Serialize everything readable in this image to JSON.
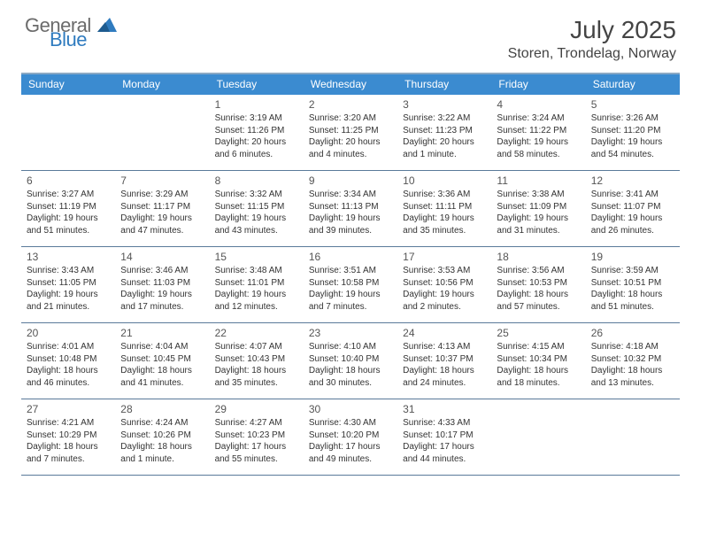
{
  "brand": {
    "word1": "General",
    "word2": "Blue",
    "word1_color": "#6b6b6b",
    "word2_color": "#2f7bbf",
    "triangle_color": "#2f7bbf"
  },
  "title": "July 2025",
  "location": "Storen, Trondelag, Norway",
  "header_colors": {
    "weekday_bg": "#3b8bd0",
    "weekday_fg": "#ffffff",
    "rule_color": "#5a7a9a",
    "top_rule": "#8aa9c4"
  },
  "weekdays": [
    "Sunday",
    "Monday",
    "Tuesday",
    "Wednesday",
    "Thursday",
    "Friday",
    "Saturday"
  ],
  "weeks": [
    [
      null,
      null,
      {
        "n": "1",
        "sr": "Sunrise: 3:19 AM",
        "ss": "Sunset: 11:26 PM",
        "dl1": "Daylight: 20 hours",
        "dl2": "and 6 minutes."
      },
      {
        "n": "2",
        "sr": "Sunrise: 3:20 AM",
        "ss": "Sunset: 11:25 PM",
        "dl1": "Daylight: 20 hours",
        "dl2": "and 4 minutes."
      },
      {
        "n": "3",
        "sr": "Sunrise: 3:22 AM",
        "ss": "Sunset: 11:23 PM",
        "dl1": "Daylight: 20 hours",
        "dl2": "and 1 minute."
      },
      {
        "n": "4",
        "sr": "Sunrise: 3:24 AM",
        "ss": "Sunset: 11:22 PM",
        "dl1": "Daylight: 19 hours",
        "dl2": "and 58 minutes."
      },
      {
        "n": "5",
        "sr": "Sunrise: 3:26 AM",
        "ss": "Sunset: 11:20 PM",
        "dl1": "Daylight: 19 hours",
        "dl2": "and 54 minutes."
      }
    ],
    [
      {
        "n": "6",
        "sr": "Sunrise: 3:27 AM",
        "ss": "Sunset: 11:19 PM",
        "dl1": "Daylight: 19 hours",
        "dl2": "and 51 minutes."
      },
      {
        "n": "7",
        "sr": "Sunrise: 3:29 AM",
        "ss": "Sunset: 11:17 PM",
        "dl1": "Daylight: 19 hours",
        "dl2": "and 47 minutes."
      },
      {
        "n": "8",
        "sr": "Sunrise: 3:32 AM",
        "ss": "Sunset: 11:15 PM",
        "dl1": "Daylight: 19 hours",
        "dl2": "and 43 minutes."
      },
      {
        "n": "9",
        "sr": "Sunrise: 3:34 AM",
        "ss": "Sunset: 11:13 PM",
        "dl1": "Daylight: 19 hours",
        "dl2": "and 39 minutes."
      },
      {
        "n": "10",
        "sr": "Sunrise: 3:36 AM",
        "ss": "Sunset: 11:11 PM",
        "dl1": "Daylight: 19 hours",
        "dl2": "and 35 minutes."
      },
      {
        "n": "11",
        "sr": "Sunrise: 3:38 AM",
        "ss": "Sunset: 11:09 PM",
        "dl1": "Daylight: 19 hours",
        "dl2": "and 31 minutes."
      },
      {
        "n": "12",
        "sr": "Sunrise: 3:41 AM",
        "ss": "Sunset: 11:07 PM",
        "dl1": "Daylight: 19 hours",
        "dl2": "and 26 minutes."
      }
    ],
    [
      {
        "n": "13",
        "sr": "Sunrise: 3:43 AM",
        "ss": "Sunset: 11:05 PM",
        "dl1": "Daylight: 19 hours",
        "dl2": "and 21 minutes."
      },
      {
        "n": "14",
        "sr": "Sunrise: 3:46 AM",
        "ss": "Sunset: 11:03 PM",
        "dl1": "Daylight: 19 hours",
        "dl2": "and 17 minutes."
      },
      {
        "n": "15",
        "sr": "Sunrise: 3:48 AM",
        "ss": "Sunset: 11:01 PM",
        "dl1": "Daylight: 19 hours",
        "dl2": "and 12 minutes."
      },
      {
        "n": "16",
        "sr": "Sunrise: 3:51 AM",
        "ss": "Sunset: 10:58 PM",
        "dl1": "Daylight: 19 hours",
        "dl2": "and 7 minutes."
      },
      {
        "n": "17",
        "sr": "Sunrise: 3:53 AM",
        "ss": "Sunset: 10:56 PM",
        "dl1": "Daylight: 19 hours",
        "dl2": "and 2 minutes."
      },
      {
        "n": "18",
        "sr": "Sunrise: 3:56 AM",
        "ss": "Sunset: 10:53 PM",
        "dl1": "Daylight: 18 hours",
        "dl2": "and 57 minutes."
      },
      {
        "n": "19",
        "sr": "Sunrise: 3:59 AM",
        "ss": "Sunset: 10:51 PM",
        "dl1": "Daylight: 18 hours",
        "dl2": "and 51 minutes."
      }
    ],
    [
      {
        "n": "20",
        "sr": "Sunrise: 4:01 AM",
        "ss": "Sunset: 10:48 PM",
        "dl1": "Daylight: 18 hours",
        "dl2": "and 46 minutes."
      },
      {
        "n": "21",
        "sr": "Sunrise: 4:04 AM",
        "ss": "Sunset: 10:45 PM",
        "dl1": "Daylight: 18 hours",
        "dl2": "and 41 minutes."
      },
      {
        "n": "22",
        "sr": "Sunrise: 4:07 AM",
        "ss": "Sunset: 10:43 PM",
        "dl1": "Daylight: 18 hours",
        "dl2": "and 35 minutes."
      },
      {
        "n": "23",
        "sr": "Sunrise: 4:10 AM",
        "ss": "Sunset: 10:40 PM",
        "dl1": "Daylight: 18 hours",
        "dl2": "and 30 minutes."
      },
      {
        "n": "24",
        "sr": "Sunrise: 4:13 AM",
        "ss": "Sunset: 10:37 PM",
        "dl1": "Daylight: 18 hours",
        "dl2": "and 24 minutes."
      },
      {
        "n": "25",
        "sr": "Sunrise: 4:15 AM",
        "ss": "Sunset: 10:34 PM",
        "dl1": "Daylight: 18 hours",
        "dl2": "and 18 minutes."
      },
      {
        "n": "26",
        "sr": "Sunrise: 4:18 AM",
        "ss": "Sunset: 10:32 PM",
        "dl1": "Daylight: 18 hours",
        "dl2": "and 13 minutes."
      }
    ],
    [
      {
        "n": "27",
        "sr": "Sunrise: 4:21 AM",
        "ss": "Sunset: 10:29 PM",
        "dl1": "Daylight: 18 hours",
        "dl2": "and 7 minutes."
      },
      {
        "n": "28",
        "sr": "Sunrise: 4:24 AM",
        "ss": "Sunset: 10:26 PM",
        "dl1": "Daylight: 18 hours",
        "dl2": "and 1 minute."
      },
      {
        "n": "29",
        "sr": "Sunrise: 4:27 AM",
        "ss": "Sunset: 10:23 PM",
        "dl1": "Daylight: 17 hours",
        "dl2": "and 55 minutes."
      },
      {
        "n": "30",
        "sr": "Sunrise: 4:30 AM",
        "ss": "Sunset: 10:20 PM",
        "dl1": "Daylight: 17 hours",
        "dl2": "and 49 minutes."
      },
      {
        "n": "31",
        "sr": "Sunrise: 4:33 AM",
        "ss": "Sunset: 10:17 PM",
        "dl1": "Daylight: 17 hours",
        "dl2": "and 44 minutes."
      },
      null,
      null
    ]
  ]
}
